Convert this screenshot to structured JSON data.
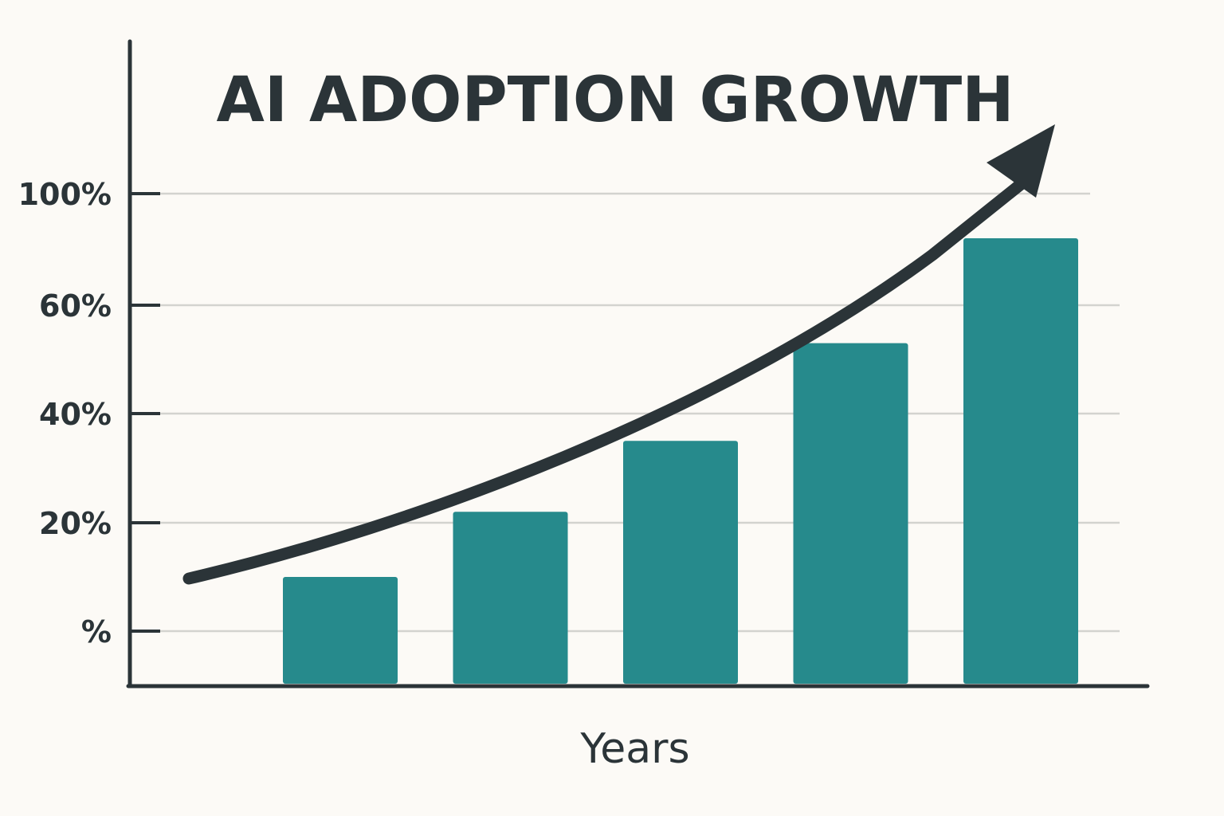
{
  "chart_data": {
    "type": "bar",
    "title": "AI ADOPTION GROWTH",
    "xlabel": "Years",
    "ylabel": "",
    "categories": [
      "",
      "",
      "",
      "",
      ""
    ],
    "values": [
      10,
      22,
      35,
      53,
      84
    ],
    "y_ticks": [
      {
        "value": 0,
        "label": "%"
      },
      {
        "value": 20,
        "label": "20%"
      },
      {
        "value": 40,
        "label": "40%"
      },
      {
        "value": 60,
        "label": "60%"
      },
      {
        "value": 100,
        "label": "100%"
      }
    ],
    "trend_arrow": true,
    "grid": true,
    "legend": "none",
    "colors": {
      "bar": "#268a8c",
      "axis": "#2b3438",
      "grid": "#d3d3cf",
      "arrow": "#2b3438",
      "background": "#fcfaf6"
    }
  }
}
